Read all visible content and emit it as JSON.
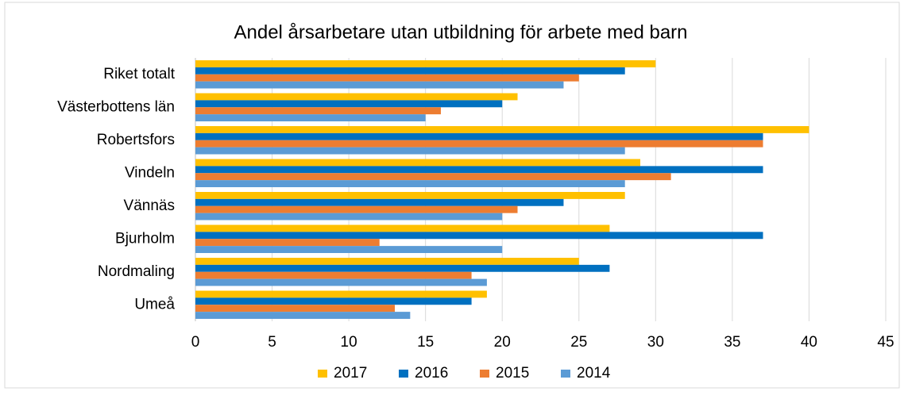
{
  "chart_data": {
    "type": "bar",
    "orientation": "horizontal",
    "title": "Andel årsarbetare utan utbildning för arbete med barn",
    "categories": [
      "Riket totalt",
      "Västerbottens län",
      "Robertsfors",
      "Vindeln",
      "Vännäs",
      "Bjurholm",
      "Nordmaling",
      "Umeå"
    ],
    "series": [
      {
        "name": "2017",
        "color": "#FFC000",
        "values": [
          30,
          21,
          40,
          29,
          28,
          27,
          25,
          19
        ]
      },
      {
        "name": "2016",
        "color": "#0070C0",
        "values": [
          28,
          20,
          37,
          37,
          24,
          37,
          27,
          18
        ]
      },
      {
        "name": "2015",
        "color": "#ED7D31",
        "values": [
          25,
          16,
          37,
          31,
          21,
          12,
          18,
          13
        ]
      },
      {
        "name": "2014",
        "color": "#5B9BD5",
        "values": [
          24,
          15,
          28,
          28,
          20,
          20,
          19,
          14
        ]
      }
    ],
    "xlim": [
      0,
      45
    ],
    "xticks": [
      0,
      5,
      10,
      15,
      20,
      25,
      30,
      35,
      40,
      45
    ],
    "grid": true,
    "legend": "bottom"
  }
}
